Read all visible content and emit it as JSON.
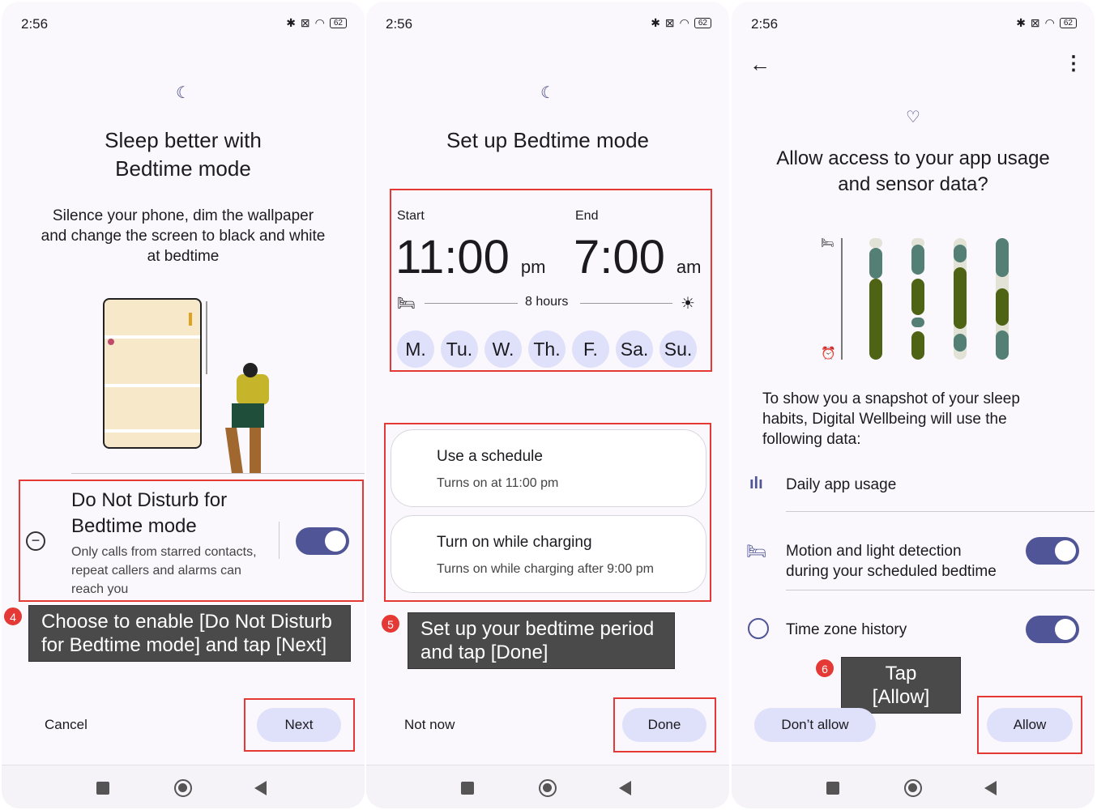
{
  "status_bar": {
    "time": "2:56",
    "battery": "62"
  },
  "panel1": {
    "icon": "bedtime-moon-icon",
    "title_line1": "Sleep better with",
    "title_line2": "Bedtime mode",
    "desc_line1": "Silence your phone, dim the wallpaper",
    "desc_line2": "and change the screen to black and white",
    "desc_line3": "at bedtime",
    "dnd_title_line1": "Do Not Disturb for",
    "dnd_title_line2": "Bedtime mode",
    "dnd_sub_line1": "Only calls from starred contacts,",
    "dnd_sub_line2": "repeat callers and alarms can",
    "dnd_sub_line3": "reach you",
    "dnd_toggle_on": true,
    "badge": "4",
    "callout_line1": "Choose to enable [Do Not Disturb",
    "callout_line2": "for Bedtime mode] and tap [Next]",
    "cancel": "Cancel",
    "next": "Next"
  },
  "panel2": {
    "title": "Set up Bedtime mode",
    "start_label": "Start",
    "start_time": "11:00",
    "start_ampm": "pm",
    "end_label": "End",
    "end_time": "7:00",
    "end_ampm": "am",
    "duration": "8 hours",
    "days": [
      "M.",
      "Tu.",
      "W.",
      "Th.",
      "F.",
      "Sa.",
      "Su."
    ],
    "schedule_title": "Use a schedule",
    "schedule_sub": "Turns on at 11:00 pm",
    "charging_title": "Turn on while charging",
    "charging_sub": "Turns on while charging after 9:00 pm",
    "badge": "5",
    "callout_line1": "Set up your bedtime period",
    "callout_line2": "and tap [Done]",
    "not_now": "Not now",
    "done": "Done"
  },
  "panel3": {
    "title_line1": "Allow access to your app usage",
    "title_line2": "and sensor data?",
    "desc_line1": "To show you a snapshot of your sleep",
    "desc_line2": "habits, Digital Wellbeing will use the",
    "desc_line3": "following data:",
    "item1": "Daily app usage",
    "item2_line1": "Motion and light detection",
    "item2_line2": "during your scheduled bedtime",
    "item2_toggle_on": true,
    "item3": "Time zone history",
    "item3_toggle_on": true,
    "badge": "6",
    "callout": "Tap [Allow]",
    "dont_allow": "Don’t allow",
    "allow": "Allow",
    "colors": {
      "awake": "#537f74",
      "asleep": "#4f6314",
      "track": "#e2e3d6"
    }
  },
  "colors": {
    "accent": "#4f5596",
    "button_bg": "#dfe0fa",
    "highlight": "#e53935",
    "callout_bg": "#4a4a4a"
  }
}
